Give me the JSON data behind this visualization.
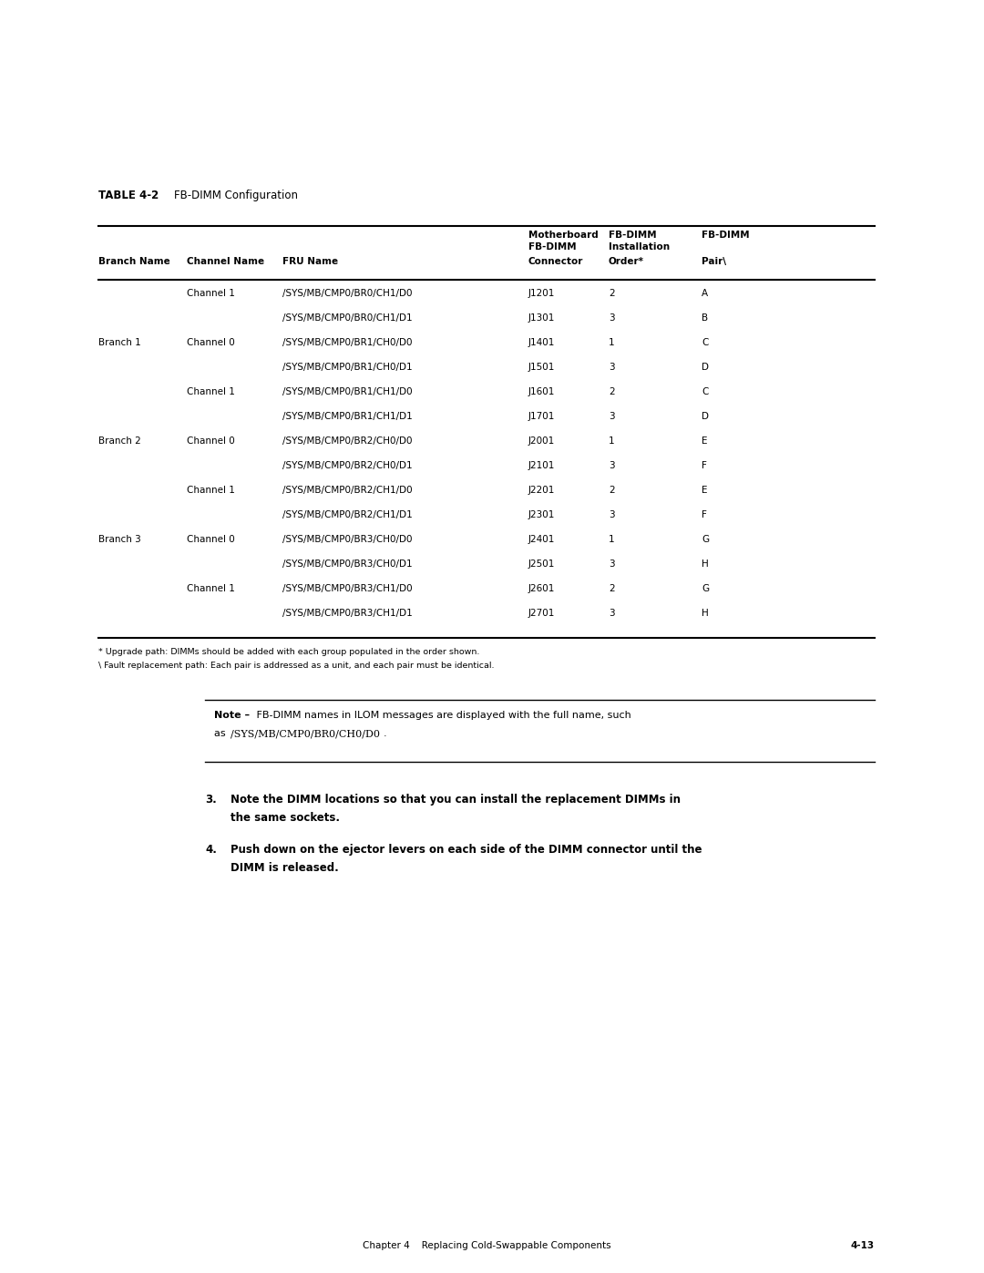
{
  "table_title_bold": "TABLE 4-2",
  "table_title_normal": "    FB-DIMM Configuration",
  "col_headers_line1": [
    "",
    "",
    "",
    "Motherboard",
    "FB-DIMM",
    "FB-DIMM"
  ],
  "col_headers_line2": [
    "",
    "",
    "",
    "FB-DIMM",
    "Installation",
    ""
  ],
  "col_headers_line3": [
    "Branch Name",
    "Channel Name",
    "FRU Name",
    "Connector",
    "Order*",
    "Pair\\"
  ],
  "rows": [
    [
      "",
      "Channel 1",
      "/SYS/MB/CMP0/BR0/CH1/D0",
      "J1201",
      "2",
      "A"
    ],
    [
      "",
      "",
      "/SYS/MB/CMP0/BR0/CH1/D1",
      "J1301",
      "3",
      "B"
    ],
    [
      "Branch 1",
      "Channel 0",
      "/SYS/MB/CMP0/BR1/CH0/D0",
      "J1401",
      "1",
      "C"
    ],
    [
      "",
      "",
      "/SYS/MB/CMP0/BR1/CH0/D1",
      "J1501",
      "3",
      "D"
    ],
    [
      "",
      "Channel 1",
      "/SYS/MB/CMP0/BR1/CH1/D0",
      "J1601",
      "2",
      "C"
    ],
    [
      "",
      "",
      "/SYS/MB/CMP0/BR1/CH1/D1",
      "J1701",
      "3",
      "D"
    ],
    [
      "Branch 2",
      "Channel 0",
      "/SYS/MB/CMP0/BR2/CH0/D0",
      "J2001",
      "1",
      "E"
    ],
    [
      "",
      "",
      "/SYS/MB/CMP0/BR2/CH0/D1",
      "J2101",
      "3",
      "F"
    ],
    [
      "",
      "Channel 1",
      "/SYS/MB/CMP0/BR2/CH1/D0",
      "J2201",
      "2",
      "E"
    ],
    [
      "",
      "",
      "/SYS/MB/CMP0/BR2/CH1/D1",
      "J2301",
      "3",
      "F"
    ],
    [
      "Branch 3",
      "Channel 0",
      "/SYS/MB/CMP0/BR3/CH0/D0",
      "J2401",
      "1",
      "G"
    ],
    [
      "",
      "",
      "/SYS/MB/CMP0/BR3/CH0/D1",
      "J2501",
      "3",
      "H"
    ],
    [
      "",
      "Channel 1",
      "/SYS/MB/CMP0/BR3/CH1/D0",
      "J2601",
      "2",
      "G"
    ],
    [
      "",
      "",
      "/SYS/MB/CMP0/BR3/CH1/D1",
      "J2701",
      "3",
      "H"
    ]
  ],
  "footnote1": "* Upgrade path: DIMMs should be added with each group populated in the order shown.",
  "footnote2": "\\ Fault replacement path: Each pair is addressed as a unit, and each pair must be identical.",
  "note_bold": "Note –",
  "note_plain": " FB-DIMM names in ILOM messages are displayed with the full name, such",
  "note_line2_plain": "as ",
  "note_line2_code": "/SYS/MB/CMP0/BR0/CH0/D0",
  "note_line2_end": ".",
  "step3_num": "3.",
  "step3_line1": "Note the DIMM locations so that you can install the replacement DIMMs in",
  "step3_line2": "the same sockets.",
  "step4_num": "4.",
  "step4_line1": "Push down on the ejector levers on each side of the DIMM connector until the",
  "step4_line2": "DIMM is released.",
  "footer_left": "Chapter 4    Replacing Cold-Swappable Components",
  "footer_right": "4-13",
  "bg_color": "#ffffff",
  "text_color": "#000000"
}
